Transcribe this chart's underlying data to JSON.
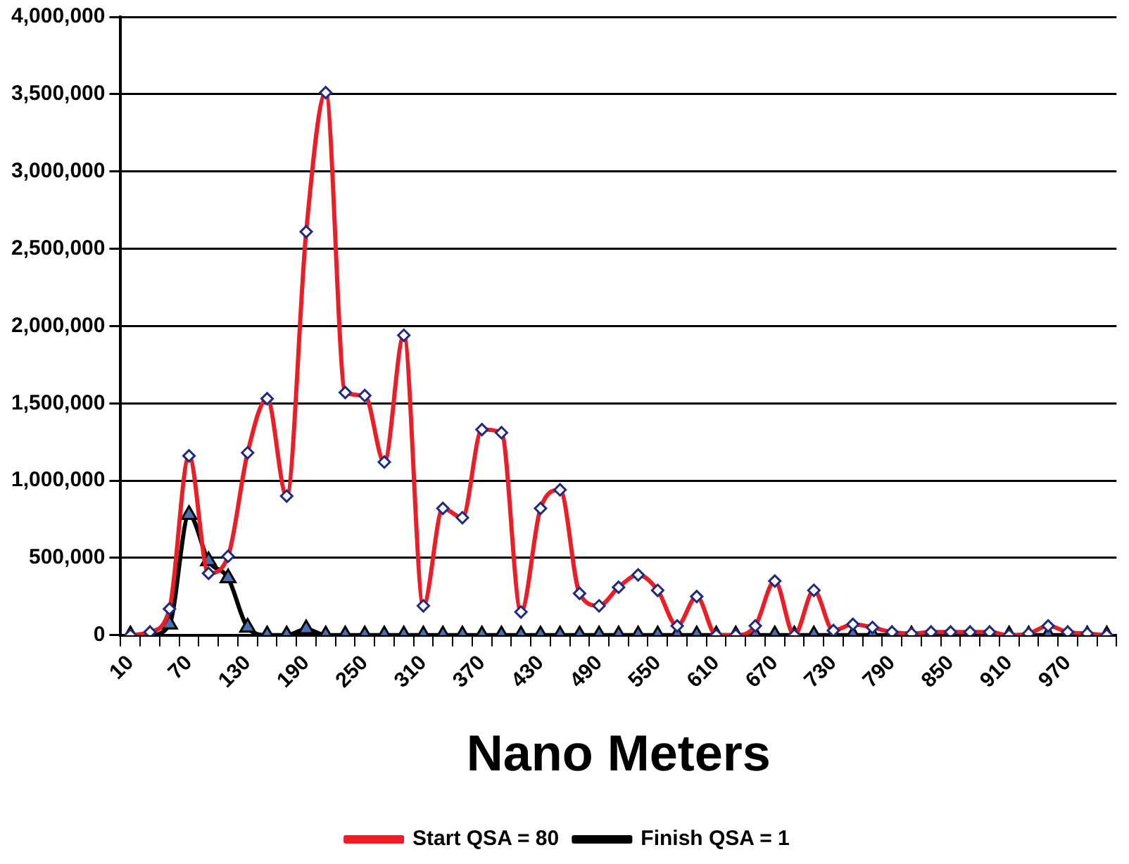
{
  "chart_data": {
    "type": "line",
    "xlabel": "Nano Meters",
    "categories": [
      "10",
      null,
      null,
      "70",
      null,
      null,
      "130",
      null,
      null,
      "190",
      null,
      null,
      "250",
      null,
      null,
      "310",
      null,
      null,
      "370",
      null,
      null,
      "430",
      null,
      null,
      "490",
      null,
      null,
      "550",
      null,
      null,
      "610",
      null,
      null,
      "670",
      null,
      null,
      "730",
      null,
      null,
      "790",
      null,
      null,
      "850",
      null,
      null,
      "910",
      null,
      null,
      "970",
      null,
      null
    ],
    "series": [
      {
        "name": "Start QSA = 80",
        "color": "#ee1c24",
        "marker": "diamond",
        "values": [
          0,
          20000,
          170000,
          1160000,
          400000,
          510000,
          1180000,
          1530000,
          900000,
          2610000,
          3510000,
          1570000,
          1550000,
          1120000,
          1940000,
          190000,
          820000,
          760000,
          1330000,
          1310000,
          150000,
          820000,
          940000,
          270000,
          190000,
          310000,
          390000,
          290000,
          60000,
          250000,
          0,
          0,
          60000,
          350000,
          0,
          290000,
          30000,
          70000,
          50000,
          20000,
          10000,
          20000,
          20000,
          20000,
          20000,
          0,
          10000,
          60000,
          20000,
          10000,
          0
        ]
      },
      {
        "name": "Finish QSA = 1",
        "color": "#000000",
        "marker": "triangle",
        "values": [
          0,
          0,
          70000,
          780000,
          480000,
          370000,
          50000,
          0,
          0,
          40000,
          0,
          0,
          0,
          0,
          0,
          0,
          0,
          0,
          0,
          0,
          0,
          0,
          0,
          0,
          0,
          0,
          0,
          0,
          0,
          0,
          0,
          0,
          0,
          0,
          0,
          0,
          0,
          0,
          0,
          0,
          0,
          0,
          0,
          0,
          0,
          0,
          0,
          0,
          0,
          0,
          0
        ]
      }
    ],
    "ylim": [
      0,
      4000000
    ],
    "yticks": [
      0,
      {
        "value": 500000,
        "label": "500,000"
      },
      {
        "value": 1000000,
        "label": "1,000,000"
      },
      {
        "value": 1500000,
        "label": "1,500,000"
      },
      {
        "value": 2000000,
        "label": "2,000,000"
      },
      {
        "value": 2500000,
        "label": "2,500,000"
      },
      {
        "value": 3000000,
        "label": "3,000,000"
      },
      {
        "value": 3500000,
        "label": "3,500,000"
      },
      {
        "value": 4000000,
        "label": "4,000,000"
      }
    ],
    "grid": "y",
    "legend": "bottom"
  }
}
